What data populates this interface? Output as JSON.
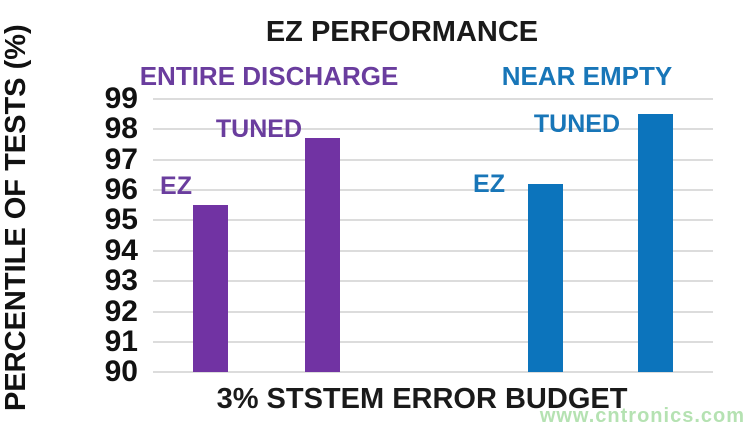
{
  "title": "EZ PERFORMANCE",
  "watermark": "www.cntronics.com",
  "colors": {
    "bar_purple": "#7133a3",
    "bar_blue": "#0c74bc",
    "label_purple": "#6a3d9e",
    "label_blue": "#1876b8",
    "gridline": "#dcdcdc",
    "watermark_green": "#b5e2b2",
    "title_black": "#1a1a1a"
  },
  "chart_data": {
    "type": "bar",
    "title": "EZ PERFORMANCE",
    "xlabel": "3% STSTEM ERROR BUDGET",
    "ylabel": "PERCENTILE OF TESTS (%)",
    "ylim": [
      90,
      99
    ],
    "yticks": [
      99,
      98,
      97,
      96,
      95,
      94,
      93,
      92,
      91,
      90
    ],
    "grid": "horizontal",
    "legend_position": "none",
    "groups": [
      {
        "name": "ENTIRE DISCHARGE",
        "color": "#7133a3",
        "bars": [
          {
            "label": "EZ",
            "value": 95.5
          },
          {
            "label": "TUNED",
            "value": 97.7
          }
        ]
      },
      {
        "name": "NEAR EMPTY",
        "color": "#0c74bc",
        "bars": [
          {
            "label": "EZ",
            "value": 96.2
          },
          {
            "label": "TUNED",
            "value": 98.5
          }
        ]
      }
    ]
  }
}
